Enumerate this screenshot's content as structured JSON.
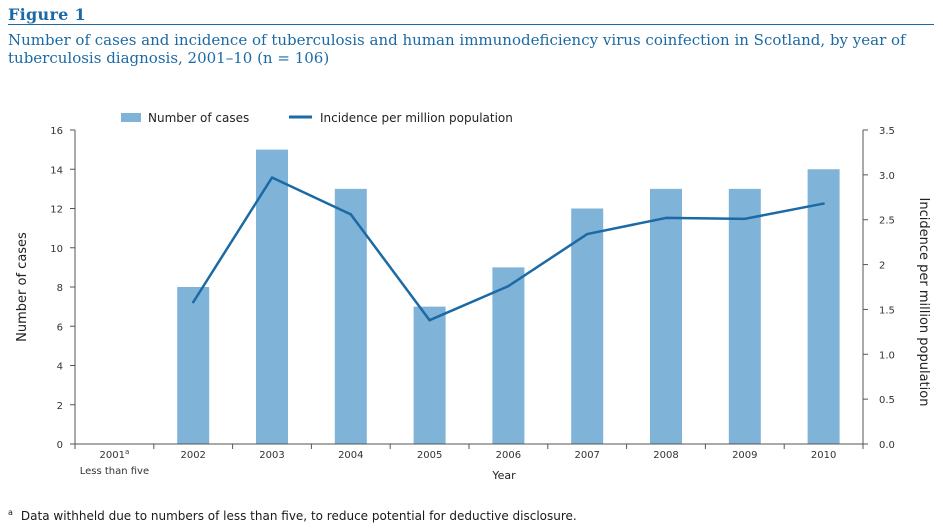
{
  "figure": {
    "label": "Figure 1",
    "title": "Number of cases and incidence of tuberculosis and human immunodeficiency virus coinfection in Scotland, by year of tuberculosis diagnosis, 2001–10 (n = 106)",
    "footnote_marker": "a",
    "footnote": "Data withheld due to numbers of less than five, to reduce potential for deductive disclosure."
  },
  "colors": {
    "bar": "#7fb3d8",
    "line": "#1b6aa5",
    "axis": "#555555",
    "title": "#1b6aa5"
  },
  "chart_data": {
    "type": "bar",
    "categories": [
      "2001",
      "2002",
      "2003",
      "2004",
      "2005",
      "2006",
      "2007",
      "2008",
      "2009",
      "2010"
    ],
    "first_category_superscript": "a",
    "first_category_note": "Less than five",
    "series": [
      {
        "name": "Number of cases",
        "type": "bar",
        "axis": "left",
        "values": [
          null,
          8,
          15,
          13,
          7,
          9,
          12,
          13,
          13,
          14
        ]
      },
      {
        "name": "Incidence per million population",
        "type": "line",
        "axis": "right",
        "values": [
          null,
          1.58,
          2.97,
          2.56,
          1.38,
          1.76,
          2.34,
          2.52,
          2.51,
          2.68
        ]
      }
    ],
    "xlabel": "Year",
    "ylabel": "Number of cases",
    "ylabel_right": "Incidence per million population",
    "ylim": [
      0,
      16
    ],
    "yticks": [
      "0",
      "2",
      "4",
      "6",
      "8",
      "10",
      "12",
      "14",
      "16"
    ],
    "ylim_right": [
      0,
      3.5
    ],
    "yticks_right": [
      "0.0",
      "0.5",
      "1.0",
      "1.5",
      "2",
      "2.5",
      "3.0",
      "3.5"
    ],
    "legend_position": "top-left",
    "grid": false
  }
}
